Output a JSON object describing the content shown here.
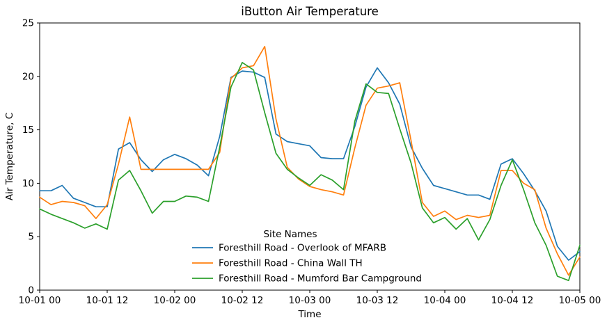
{
  "figure": {
    "background": "#ffffff",
    "axis_color": "#000000"
  },
  "chart_data": {
    "type": "line",
    "title": "iButton Air Temperature",
    "xlabel": "Time",
    "ylabel": "Air Temperature, C",
    "ylim": [
      0,
      25
    ],
    "yticks": [
      0,
      5,
      10,
      15,
      20,
      25
    ],
    "xlim_hours": [
      0,
      96
    ],
    "xtick_hours": [
      0,
      12,
      24,
      36,
      48,
      60,
      72,
      84,
      96
    ],
    "xtick_labels": [
      "10-01 00",
      "10-01 12",
      "10-02 00",
      "10-02 12",
      "10-03 00",
      "10-03 12",
      "10-04 00",
      "10-04 12",
      "10-05 00"
    ],
    "x_hours": [
      0,
      2,
      4,
      6,
      8,
      10,
      12,
      14,
      16,
      18,
      20,
      22,
      24,
      26,
      28,
      30,
      32,
      34,
      36,
      38,
      40,
      42,
      44,
      46,
      48,
      50,
      52,
      54,
      56,
      58,
      60,
      62,
      64,
      66,
      68,
      70,
      72,
      74,
      76,
      78,
      80,
      82,
      84,
      86,
      88,
      90,
      92,
      94,
      96
    ],
    "grid": false,
    "legend": {
      "title": "Site Names",
      "position": "lower center"
    },
    "series": [
      {
        "name": "Foresthill Road - Overlook of MFARB",
        "color": "#1f77b4",
        "values": [
          9.3,
          9.3,
          9.8,
          8.6,
          8.2,
          7.8,
          7.8,
          13.2,
          13.8,
          12.2,
          11.1,
          12.2,
          12.7,
          12.3,
          11.7,
          10.7,
          14.4,
          19.9,
          20.5,
          20.4,
          19.9,
          14.6,
          13.9,
          13.7,
          13.5,
          12.4,
          12.3,
          12.3,
          15.3,
          19.0,
          20.8,
          19.4,
          17.4,
          13.4,
          11.4,
          9.8,
          9.5,
          9.2,
          8.9,
          8.9,
          8.5,
          11.8,
          12.3,
          10.9,
          9.3,
          7.4,
          4.1,
          2.8,
          3.6
        ]
      },
      {
        "name": "Foresthill Road - China Wall TH",
        "color": "#ff7f0e",
        "values": [
          8.7,
          8.0,
          8.3,
          8.2,
          7.9,
          6.7,
          8.0,
          11.8,
          16.2,
          11.3,
          11.3,
          11.3,
          11.3,
          11.3,
          11.3,
          11.3,
          12.9,
          19.8,
          20.8,
          21.0,
          22.8,
          16.0,
          11.5,
          10.4,
          9.7,
          9.4,
          9.2,
          8.9,
          13.3,
          17.3,
          18.9,
          19.1,
          19.4,
          14.0,
          8.2,
          6.9,
          7.4,
          6.6,
          7.0,
          6.8,
          7.0,
          11.2,
          11.2,
          10.0,
          9.4,
          5.8,
          3.4,
          1.4,
          3.1
        ]
      },
      {
        "name": "Foresthill Road - Mumford Bar Campground",
        "color": "#2ca02c",
        "values": [
          7.6,
          7.1,
          6.7,
          6.3,
          5.8,
          6.2,
          5.7,
          10.3,
          11.2,
          9.3,
          7.2,
          8.3,
          8.3,
          8.8,
          8.7,
          8.3,
          13.4,
          19.0,
          21.3,
          20.6,
          16.6,
          12.8,
          11.3,
          10.5,
          9.8,
          10.8,
          10.3,
          9.4,
          15.8,
          19.3,
          18.5,
          18.4,
          15.1,
          11.9,
          7.7,
          6.3,
          6.8,
          5.7,
          6.7,
          4.7,
          6.6,
          9.8,
          12.2,
          9.4,
          6.3,
          4.2,
          1.3,
          0.9,
          4.2
        ]
      }
    ]
  }
}
